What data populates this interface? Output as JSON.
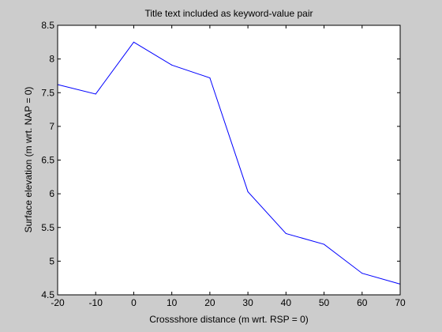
{
  "chart_data": {
    "type": "line",
    "title": "Title text included as keyword-value pair",
    "xlabel": "Crossshore distance (m wrt. RSP = 0)",
    "ylabel": "Surface elevation (m wrt. NAP = 0)",
    "xlim": [
      -20,
      70
    ],
    "ylim": [
      4.5,
      8.5
    ],
    "x_ticks": [
      -20,
      -10,
      0,
      10,
      20,
      30,
      40,
      50,
      60,
      70
    ],
    "x_tick_labels": [
      "-20",
      "-10",
      "0",
      "10",
      "20",
      "30",
      "40",
      "50",
      "60",
      "70"
    ],
    "y_ticks": [
      4.5,
      5,
      5.5,
      6,
      6.5,
      7,
      7.5,
      8,
      8.5
    ],
    "y_tick_labels": [
      "4.5",
      "5",
      "5.5",
      "6",
      "6.5",
      "7",
      "7.5",
      "8",
      "8.5"
    ],
    "grid": false,
    "legend": "none",
    "series": [
      {
        "color": "#0000ff",
        "x": [
          -20,
          -10,
          0,
          10,
          20,
          30,
          40,
          50,
          60,
          70
        ],
        "y": [
          7.62,
          7.48,
          8.25,
          7.91,
          7.72,
          6.03,
          5.41,
          5.25,
          4.82,
          4.66
        ]
      }
    ]
  },
  "colors": {
    "figure_background": "#cccccc",
    "axes_background": "#ffffff",
    "axis_color": "#000000",
    "line_color": "#0000ff"
  }
}
